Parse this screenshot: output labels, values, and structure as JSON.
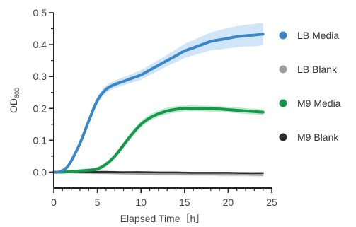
{
  "chart_data": {
    "type": "line",
    "title": "",
    "xlabel": "Elapsed Time［h］",
    "ylabel": "OD",
    "ylabel_subscript": "600",
    "xlim": [
      0,
      25
    ],
    "ylim": [
      -0.05,
      0.5
    ],
    "x_ticks": [
      0,
      5,
      10,
      15,
      20,
      25
    ],
    "y_ticks": [
      0.0,
      0.1,
      0.2,
      0.3,
      0.4,
      0.5
    ],
    "x_tick_labels": [
      "0",
      "5",
      "10",
      "15",
      "20",
      "25"
    ],
    "y_tick_labels": [
      "0.0",
      "0.1",
      "0.2",
      "0.3",
      "0.4",
      "0.5"
    ],
    "grid": false,
    "legend_position": "right",
    "series": [
      {
        "name": "LB Media",
        "color": "#3a87c8",
        "band_color": "#a9cff0",
        "x": [
          0,
          0.5,
          1,
          1.5,
          2,
          3,
          4,
          5,
          6,
          7,
          8,
          9,
          10,
          11,
          12,
          13,
          14,
          15,
          16,
          17,
          18,
          19,
          20,
          21,
          22,
          23,
          24
        ],
        "y": [
          0.0,
          0.0,
          0.005,
          0.015,
          0.035,
          0.09,
          0.16,
          0.225,
          0.26,
          0.275,
          0.285,
          0.295,
          0.305,
          0.32,
          0.335,
          0.35,
          0.365,
          0.38,
          0.39,
          0.4,
          0.41,
          0.415,
          0.42,
          0.425,
          0.428,
          0.43,
          0.433
        ],
        "band_halfwidth": [
          0.004,
          0.004,
          0.005,
          0.006,
          0.007,
          0.008,
          0.01,
          0.012,
          0.012,
          0.012,
          0.013,
          0.014,
          0.015,
          0.016,
          0.017,
          0.018,
          0.02,
          0.022,
          0.024,
          0.026,
          0.028,
          0.03,
          0.032,
          0.033,
          0.034,
          0.035,
          0.035
        ]
      },
      {
        "name": "LB Blank",
        "color": "#a0a0a0",
        "band_color": "#cfcfcf",
        "x": [
          0,
          2,
          4,
          6,
          8,
          10,
          12,
          14,
          16,
          18,
          20,
          22,
          24
        ],
        "y": [
          0.0,
          -0.001,
          -0.002,
          -0.003,
          -0.004,
          -0.005,
          -0.006,
          -0.006,
          -0.007,
          -0.007,
          -0.008,
          -0.008,
          -0.009
        ],
        "band_halfwidth": [
          0.004,
          0.004,
          0.004,
          0.004,
          0.004,
          0.004,
          0.005,
          0.005,
          0.005,
          0.005,
          0.005,
          0.005,
          0.005
        ]
      },
      {
        "name": "M9 Media",
        "color": "#119a4a",
        "band_color": "#8fd3a5",
        "x": [
          0,
          1,
          2,
          3,
          4,
          5,
          6,
          7,
          8,
          9,
          10,
          11,
          12,
          13,
          14,
          15,
          16,
          17,
          18,
          19,
          20,
          21,
          22,
          23,
          24
        ],
        "y": [
          0.0,
          0.0,
          0.002,
          0.004,
          0.006,
          0.01,
          0.025,
          0.05,
          0.085,
          0.12,
          0.15,
          0.17,
          0.183,
          0.192,
          0.197,
          0.2,
          0.2,
          0.2,
          0.199,
          0.198,
          0.196,
          0.194,
          0.192,
          0.19,
          0.188
        ],
        "band_halfwidth": [
          0.004,
          0.004,
          0.004,
          0.004,
          0.005,
          0.006,
          0.007,
          0.008,
          0.009,
          0.01,
          0.01,
          0.01,
          0.01,
          0.01,
          0.01,
          0.009,
          0.009,
          0.009,
          0.009,
          0.009,
          0.009,
          0.009,
          0.009,
          0.009,
          0.009
        ]
      },
      {
        "name": "M9 Blank",
        "color": "#2e2e2e",
        "band_color": "#888888",
        "x": [
          0,
          2,
          4,
          6,
          8,
          10,
          12,
          14,
          16,
          18,
          20,
          22,
          24
        ],
        "y": [
          0.0,
          0.0,
          0.001,
          0.001,
          0.0,
          0.0,
          -0.001,
          -0.001,
          -0.002,
          -0.002,
          -0.002,
          -0.003,
          -0.003
        ],
        "band_halfwidth": [
          0.002,
          0.002,
          0.002,
          0.002,
          0.002,
          0.002,
          0.002,
          0.002,
          0.002,
          0.002,
          0.002,
          0.002,
          0.002
        ]
      }
    ]
  }
}
